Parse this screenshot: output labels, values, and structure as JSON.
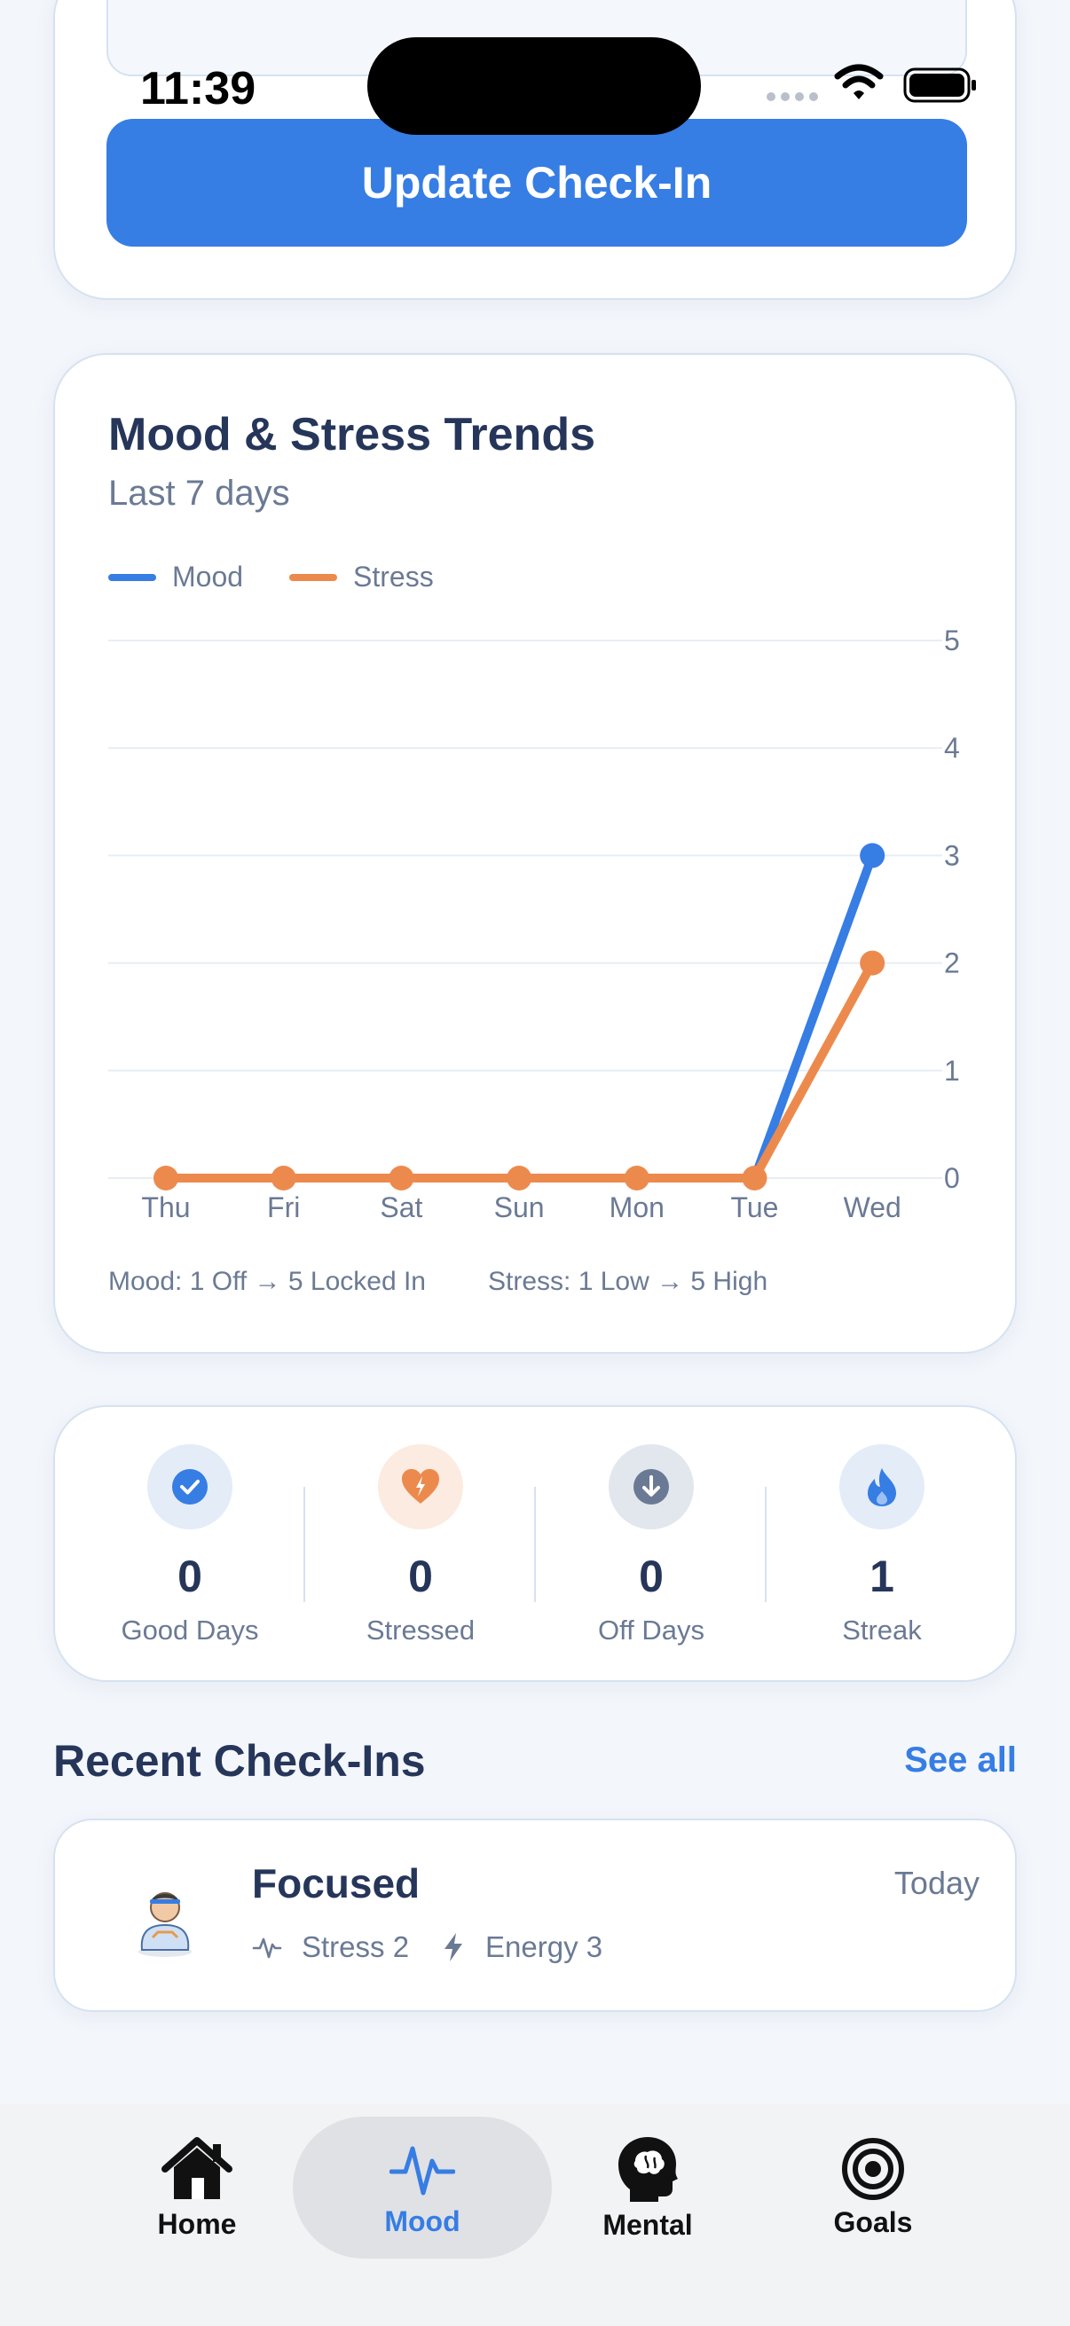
{
  "status_bar": {
    "time": "11:39"
  },
  "top_card": {
    "update_button": "Update Check-In"
  },
  "trends": {
    "title": "Mood & Stress Trends",
    "subtitle": "Last 7 days",
    "scale_mood": "Mood: 1 Off → 5 Locked In",
    "scale_stress": "Stress: 1 Low → 5 High",
    "colors": {
      "mood": "#367de4",
      "stress": "#ec8a4d"
    }
  },
  "chart_data": {
    "type": "line",
    "categories": [
      "Thu",
      "Fri",
      "Sat",
      "Sun",
      "Mon",
      "Tue",
      "Wed"
    ],
    "series": [
      {
        "name": "Mood",
        "values": [
          0,
          0,
          0,
          0,
          0,
          0,
          3
        ]
      },
      {
        "name": "Stress",
        "values": [
          0,
          0,
          0,
          0,
          0,
          0,
          2
        ]
      }
    ],
    "ylim": [
      0,
      5
    ],
    "yticks": [
      "0",
      "1",
      "2",
      "3",
      "4",
      "5"
    ],
    "grid": true,
    "legend": "top-left"
  },
  "stats": [
    {
      "value": "0",
      "label": "Good Days",
      "icon": "check-icon",
      "color": "#367de4",
      "bg": "#e4ecf8"
    },
    {
      "value": "0",
      "label": "Stressed",
      "icon": "heart-bolt-icon",
      "color": "#ec8a4d",
      "bg": "#fcebe0"
    },
    {
      "value": "0",
      "label": "Off Days",
      "icon": "arrow-down-icon",
      "color": "#6b7a94",
      "bg": "#e2e7ee"
    },
    {
      "value": "1",
      "label": "Streak",
      "icon": "flame-icon",
      "color": "#367de4",
      "bg": "#e4ecf8"
    }
  ],
  "recent": {
    "title": "Recent Check-Ins",
    "see_all": "See all",
    "items": [
      {
        "mood": "Focused",
        "date": "Today",
        "stress": "Stress 2",
        "energy": "Energy 3"
      }
    ]
  },
  "tabs": [
    {
      "label": "Home",
      "icon": "house-icon"
    },
    {
      "label": "Mood",
      "icon": "pulse-icon",
      "active": true
    },
    {
      "label": "Mental",
      "icon": "brain-head-icon"
    },
    {
      "label": "Goals",
      "icon": "target-icon"
    }
  ]
}
